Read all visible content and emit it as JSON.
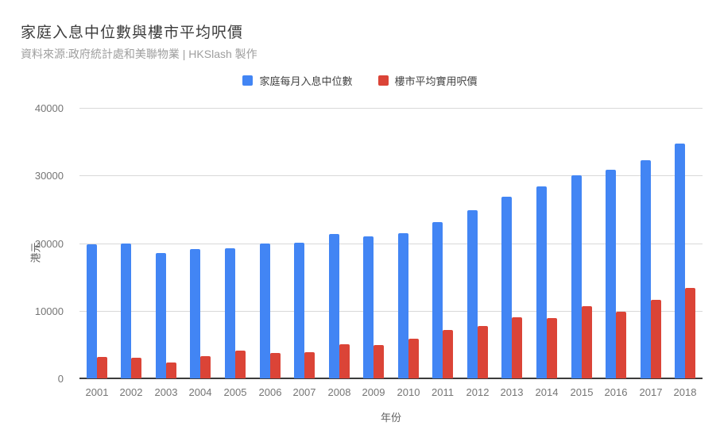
{
  "header": {
    "title": "家庭入息中位數與樓市平均呎價",
    "subtitle": "資料來源:政府統計處和美聯物業 | HKSlash 製作"
  },
  "colors": {
    "income_blue": "#4285f4",
    "price_red": "#db4437",
    "gridline": "#d9d9d9",
    "axis_text": "#757575",
    "title_text": "#3c3c3c",
    "subtitle_text": "#9e9e9e"
  },
  "chart_data": {
    "type": "bar",
    "title": "家庭入息中位數與樓市平均呎價",
    "subtitle": "資料來源:政府統計處和美聯物業 | HKSlash 製作",
    "xlabel": "年份",
    "ylabel": "港元",
    "ylim": [
      0,
      40000
    ],
    "yticks": [
      0,
      10000,
      20000,
      30000,
      40000
    ],
    "grid": true,
    "legend_position": "top",
    "categories": [
      "2001",
      "2002",
      "2003",
      "2004",
      "2005",
      "2006",
      "2007",
      "2008",
      "2009",
      "2010",
      "2011",
      "2012",
      "2013",
      "2014",
      "2015",
      "2016",
      "2017",
      "2018"
    ],
    "series": [
      {
        "name": "家庭每月入息中位數",
        "color": "#4285f4",
        "values": [
          19800,
          19900,
          18500,
          19100,
          19200,
          19900,
          20000,
          21400,
          21000,
          21500,
          23100,
          24900,
          26900,
          28400,
          30000,
          30800,
          32200,
          34700
        ]
      },
      {
        "name": "樓市平均實用呎價",
        "color": "#db4437",
        "values": [
          3200,
          3000,
          2300,
          3300,
          4100,
          3800,
          3900,
          5100,
          4900,
          5900,
          7200,
          7800,
          9000,
          8900,
          10700,
          9900,
          11600,
          13400
        ]
      }
    ]
  }
}
